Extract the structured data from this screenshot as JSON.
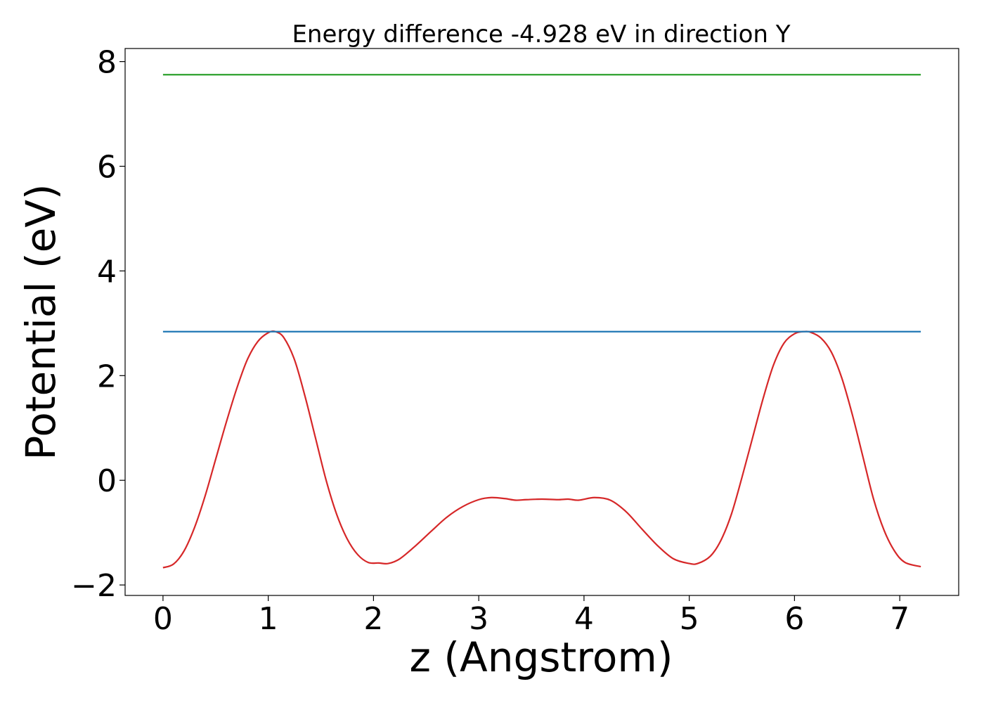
{
  "chart_data": {
    "type": "line",
    "title": "Energy difference -4.928 eV in direction Y",
    "xlabel": "z (Angstrom)",
    "ylabel": "Potential (eV)",
    "xlim": [
      -0.36,
      7.56
    ],
    "ylim": [
      -2.2,
      8.25
    ],
    "xticks": [
      0,
      1,
      2,
      3,
      4,
      5,
      6,
      7
    ],
    "xtick_labels": [
      "0",
      "1",
      "2",
      "3",
      "4",
      "5",
      "6",
      "7"
    ],
    "yticks": [
      -2,
      0,
      2,
      4,
      6,
      8
    ],
    "ytick_labels": [
      "−2",
      "0",
      "2",
      "4",
      "6",
      "8"
    ],
    "grid": false,
    "series": [
      {
        "color": "#d62728",
        "x": [
          0,
          0.1,
          0.2,
          0.3,
          0.4,
          0.5,
          0.6,
          0.7,
          0.8,
          0.9,
          1.0,
          1.07,
          1.15,
          1.25,
          1.35,
          1.45,
          1.55,
          1.65,
          1.75,
          1.85,
          1.95,
          2.05,
          2.14,
          2.25,
          2.4,
          2.55,
          2.7,
          2.85,
          3.0,
          3.12,
          3.25,
          3.35,
          3.45,
          3.6,
          3.75,
          3.85,
          3.95,
          4.1,
          4.25,
          4.4,
          4.55,
          4.7,
          4.85,
          5.0,
          5.08,
          5.2,
          5.3,
          5.4,
          5.5,
          5.6,
          5.7,
          5.8,
          5.9,
          6.0,
          6.08,
          6.15,
          6.25,
          6.35,
          6.45,
          6.55,
          6.65,
          6.75,
          6.85,
          6.95,
          7.05,
          7.2
        ],
        "y": [
          -1.67,
          -1.6,
          -1.35,
          -0.9,
          -0.3,
          0.4,
          1.1,
          1.75,
          2.3,
          2.65,
          2.82,
          2.84,
          2.72,
          2.3,
          1.6,
          0.8,
          0.0,
          -0.65,
          -1.12,
          -1.42,
          -1.57,
          -1.58,
          -1.59,
          -1.5,
          -1.25,
          -0.97,
          -0.7,
          -0.5,
          -0.37,
          -0.33,
          -0.35,
          -0.38,
          -0.37,
          -0.36,
          -0.37,
          -0.36,
          -0.38,
          -0.33,
          -0.38,
          -0.6,
          -0.93,
          -1.25,
          -1.5,
          -1.59,
          -1.59,
          -1.45,
          -1.15,
          -0.65,
          0.05,
          0.8,
          1.55,
          2.2,
          2.62,
          2.8,
          2.84,
          2.83,
          2.72,
          2.45,
          1.95,
          1.25,
          0.45,
          -0.35,
          -0.95,
          -1.35,
          -1.57,
          -1.65
        ]
      },
      {
        "color": "#1f77b4",
        "x": [
          0,
          7.2
        ],
        "y": [
          2.84,
          2.84
        ]
      },
      {
        "color": "#2ca02c",
        "x": [
          0,
          7.2
        ],
        "y": [
          7.75,
          7.75
        ]
      }
    ]
  }
}
